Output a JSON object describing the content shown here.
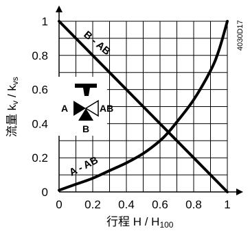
{
  "chart_data": {
    "type": "line",
    "xlabel": "行程 H / H100",
    "ylabel": "流量 kv / kvs",
    "xlim": [
      0,
      1
    ],
    "ylim": [
      0,
      1
    ],
    "grid": true,
    "x_ticks": [
      "0",
      "0.2",
      "0.4",
      "0.6",
      "0.8",
      "1"
    ],
    "y_ticks": [
      "0",
      "0.2",
      "0.4",
      "0.6",
      "0.8",
      "1"
    ],
    "code": "4030D17",
    "series": [
      {
        "name": "B - AB",
        "x": [
          0,
          0.2,
          0.4,
          0.6,
          0.8,
          1
        ],
        "y": [
          1,
          0.8,
          0.6,
          0.4,
          0.2,
          0
        ]
      },
      {
        "name": "A - AB",
        "x": [
          0,
          0.1,
          0.2,
          0.3,
          0.4,
          0.5,
          0.6,
          0.65,
          0.7,
          0.8,
          0.9,
          0.95,
          1
        ],
        "y": [
          0.01,
          0.045,
          0.08,
          0.125,
          0.17,
          0.225,
          0.3,
          0.35,
          0.41,
          0.54,
          0.71,
          0.83,
          1
        ]
      }
    ],
    "valve_symbol": {
      "port_a": "A",
      "port_ab": "AB",
      "port_b": "B"
    }
  }
}
